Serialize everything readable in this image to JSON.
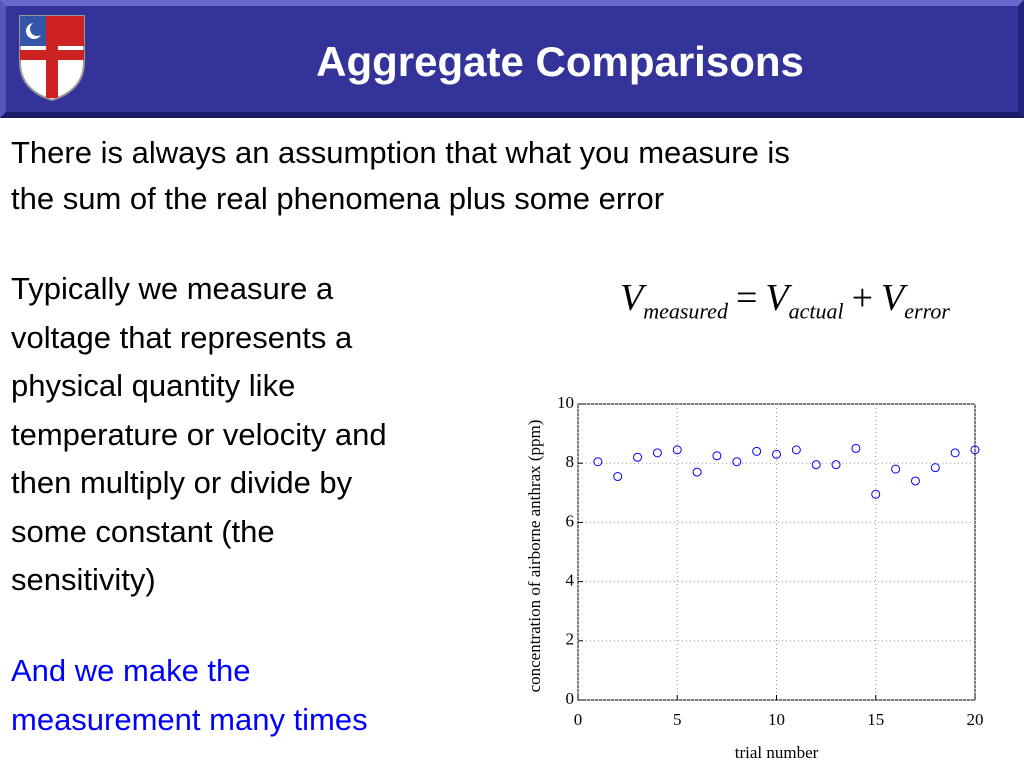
{
  "header": {
    "title": "Aggregate Comparisons"
  },
  "body": {
    "intro": [
      "There is always an assumption that what you measure is",
      "the sum of the real phenomena plus some error"
    ],
    "detail": [
      "Typically we measure a",
      "voltage that represents a",
      "physical quantity like",
      "temperature or velocity and",
      "then multiply or divide by",
      "some constant (the",
      "sensitivity)"
    ],
    "highlight": [
      "And we make the",
      "measurement many times"
    ]
  },
  "equation": {
    "terms": [
      {
        "symbol": "V",
        "subscript": "measured"
      },
      {
        "symbol": "V",
        "subscript": "actual"
      },
      {
        "symbol": "V",
        "subscript": "error"
      }
    ],
    "operators": [
      "=",
      "+"
    ]
  },
  "chart_data": {
    "type": "scatter",
    "x": [
      1,
      2,
      3,
      4,
      5,
      6,
      7,
      8,
      9,
      10,
      11,
      12,
      13,
      14,
      15,
      16,
      17,
      18,
      19,
      20
    ],
    "values": [
      8.05,
      7.55,
      8.2,
      8.35,
      8.45,
      7.7,
      8.25,
      8.05,
      8.4,
      8.3,
      8.45,
      7.95,
      7.95,
      8.5,
      6.95,
      7.8,
      7.4,
      7.85,
      8.35,
      8.45
    ],
    "color": "#0000ff",
    "xlim": [
      0,
      20
    ],
    "xticks": [
      0,
      5,
      10,
      15,
      20
    ],
    "ylim": [
      0,
      10
    ],
    "yticks": [
      0,
      2,
      4,
      6,
      8,
      10
    ],
    "xlabel": "trial number",
    "ylabel": "concentration of airborne anthrax (ppm)",
    "grid": true
  }
}
